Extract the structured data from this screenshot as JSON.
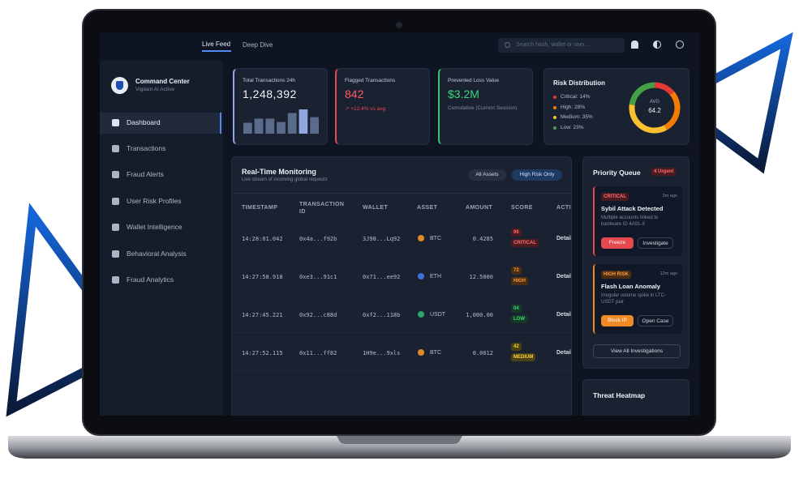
{
  "top_nav": {
    "tabs": [
      "Live Feed",
      "Deep Dive"
    ],
    "search_placeholder": "Search hash, wallet or user..."
  },
  "sidebar": {
    "brand_title": "Command Center",
    "brand_subtitle": "Vigilant AI Active",
    "items": [
      "Dashboard",
      "Transactions",
      "Fraud Alerts",
      "User Risk Profiles",
      "Wallet Intelligence",
      "Behavioral Analysis",
      "Fraud Analytics"
    ]
  },
  "kpis": [
    {
      "label": "Total Transactions 24h",
      "value": "1,248,392",
      "spark": [
        45,
        62,
        62,
        48,
        85,
        100,
        68
      ]
    },
    {
      "label": "Flagged Transactions",
      "value": "842",
      "note": "↗ +12.4% vs avg"
    },
    {
      "label": "Prevented Loss Value",
      "value": "$3.2M",
      "note": "Cumulative (Current Session)"
    }
  ],
  "risk_distribution": {
    "title": "Risk Distribution",
    "items": [
      {
        "label": "Critical: 14%",
        "value": 14,
        "color": "#e53935"
      },
      {
        "label": "High: 28%",
        "value": 28,
        "color": "#f57c00"
      },
      {
        "label": "Medium: 35%",
        "value": 35,
        "color": "#fbc02d"
      },
      {
        "label": "Low: 23%",
        "value": 23,
        "color": "#43a047"
      }
    ],
    "center_label": "AVG",
    "center_value": "64.2"
  },
  "monitoring": {
    "title": "Real-Time Monitoring",
    "subtitle": "Live stream of incoming global requests",
    "filters": [
      "All Assets",
      "High Risk Only"
    ],
    "columns": [
      "TIMESTAMP",
      "TRANSACTION ID",
      "WALLET",
      "ASSET",
      "AMOUNT",
      "SCORE",
      "ACTIONS"
    ],
    "rows": [
      [
        "14:28:01.042",
        "0x4a...f92b",
        "3J98...Lq92",
        "BTC",
        "0.4285",
        "96",
        "CRITICAL",
        "Details"
      ],
      [
        "14:27:58.918",
        "0xe3...91c1",
        "0x71...ee92",
        "ETH",
        "12.5000",
        "72",
        "HIGH",
        "Details"
      ],
      [
        "14:27:45.221",
        "0x92...c88d",
        "0xf2...118b",
        "USDT",
        "1,000.00",
        "04",
        "LOW",
        "Details"
      ],
      [
        "14:27:52.115",
        "0x11...ff82",
        "1H9e...9xls",
        "BTC",
        "0.0012",
        "42",
        "MEDIUM",
        "Details"
      ]
    ]
  },
  "priority_queue": {
    "title": "Priority Queue",
    "badge": "4 Urgent",
    "alerts": [
      {
        "level": "CRITICAL",
        "time": "2m ago",
        "title": "Sybil Attack Detected",
        "text": "Multiple accounts linked to hardware ID 4A91-X",
        "actions": [
          "Freeze",
          "Investigate"
        ]
      },
      {
        "level": "HIGH RISK",
        "time": "12m ago",
        "title": "Flash Loan Anomaly",
        "text": "Irregular volume spike in LTC-USDT pair",
        "actions": [
          "Block IP",
          "Open Case"
        ]
      }
    ],
    "view_all": "View All Investigations"
  },
  "threat_heatmap": {
    "title": "Threat Heatmap"
  }
}
